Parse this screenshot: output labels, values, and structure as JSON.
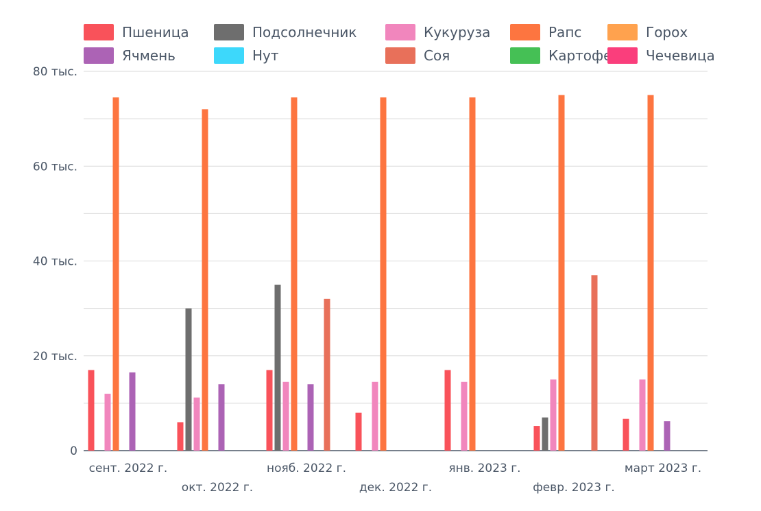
{
  "chart_data": {
    "type": "bar",
    "title": "",
    "xlabel": "",
    "ylabel": "",
    "ylim": [
      0,
      80000
    ],
    "y_ticks": [
      {
        "value": 0,
        "label": "0"
      },
      {
        "value": 20000,
        "label": "20 тыс."
      },
      {
        "value": 40000,
        "label": "40 тыс."
      },
      {
        "value": 60000,
        "label": "60 тыс."
      },
      {
        "value": 80000,
        "label": "80 тыс."
      }
    ],
    "grid": true,
    "legend_position": "top",
    "categories": [
      "сент. 2022 г.",
      "окт. 2022 г.",
      "нояб. 2022 г.",
      "дек. 2022 г.",
      "янв. 2023 г.",
      "февр. 2023 г.",
      "март 2023 г."
    ],
    "series": [
      {
        "name": "Пшеница",
        "color": "#f9525a",
        "values": [
          17000,
          6000,
          17000,
          8000,
          17000,
          5200,
          6700
        ]
      },
      {
        "name": "Подсолнечник",
        "color": "#6e6e6e",
        "values": [
          0,
          30000,
          35000,
          0,
          0,
          7000,
          0
        ]
      },
      {
        "name": "Кукуруза",
        "color": "#f186bd",
        "values": [
          12000,
          11200,
          14500,
          14500,
          14500,
          15000,
          15000
        ]
      },
      {
        "name": "Рапс",
        "color": "#fd7540",
        "values": [
          74500,
          72000,
          74500,
          74500,
          74500,
          75000,
          75000
        ]
      },
      {
        "name": "Горох",
        "color": "#ffa24e",
        "values": [
          0,
          0,
          0,
          0,
          0,
          0,
          0
        ]
      },
      {
        "name": "Ячмень",
        "color": "#ac63b5",
        "values": [
          16500,
          14000,
          14000,
          0,
          0,
          0,
          6200
        ]
      },
      {
        "name": "Нут",
        "color": "#3dd8fb",
        "values": [
          0,
          0,
          0,
          0,
          0,
          0,
          0
        ]
      },
      {
        "name": "Соя",
        "color": "#e8705a",
        "values": [
          0,
          0,
          32000,
          0,
          0,
          37000,
          0
        ]
      },
      {
        "name": "Картофель",
        "color": "#45c055",
        "values": [
          0,
          0,
          0,
          0,
          0,
          0,
          0
        ]
      },
      {
        "name": "Чечевица",
        "color": "#fa3e7c",
        "values": [
          0,
          0,
          0,
          0,
          0,
          0,
          0
        ]
      }
    ]
  }
}
